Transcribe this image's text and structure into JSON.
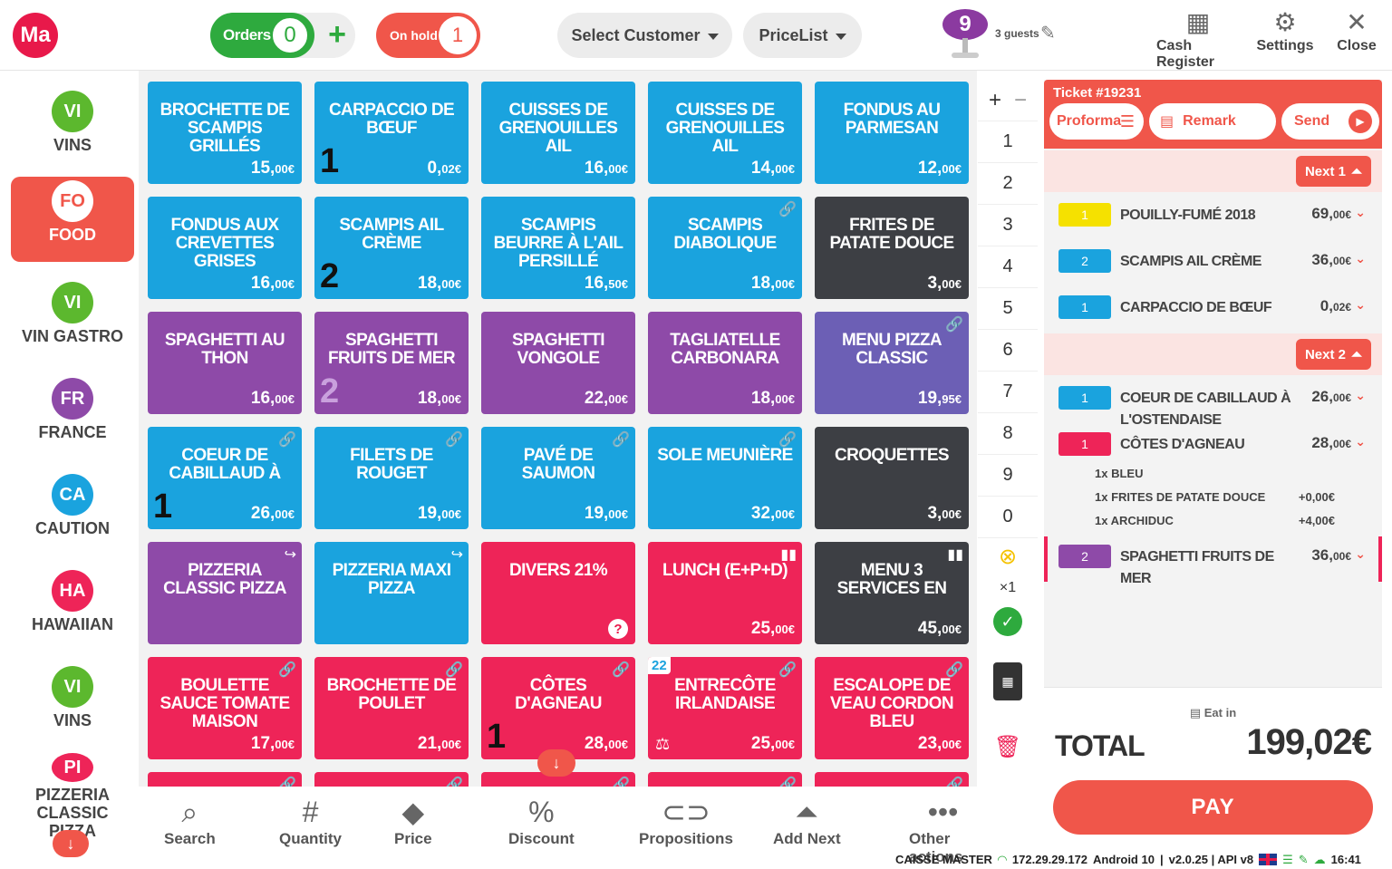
{
  "header": {
    "logo": "Ma",
    "orders_label": "Orders",
    "orders_count": "0",
    "orders_add": "+",
    "onhold_label": "On hold",
    "onhold_count": "1",
    "select_customer": "Select Customer",
    "pricelist": "PriceList",
    "guests_number": "9",
    "guests_text": "3 guests",
    "cash_register": "Cash Register",
    "settings": "Settings",
    "close": "Close"
  },
  "sidebar": {
    "items": [
      {
        "code": "VI",
        "label": "VINS",
        "color": "#5cb82e"
      },
      {
        "code": "FO",
        "label": "FOOD",
        "color": "#f0564a"
      },
      {
        "code": "VI",
        "label": "VIN GASTRO",
        "color": "#5cb82e"
      },
      {
        "code": "FR",
        "label": "FRANCE",
        "color": "#8e4aa8"
      },
      {
        "code": "CA",
        "label": "CAUTION",
        "color": "#1aa3de"
      },
      {
        "code": "HA",
        "label": "HAWAIIAN",
        "color": "#ee2458"
      },
      {
        "code": "VI",
        "label": "VINS",
        "color": "#5cb82e"
      },
      {
        "code": "PI",
        "label": "PIZZERIA CLASSIC PIZZA",
        "color": "#ee2458"
      }
    ]
  },
  "products": [
    {
      "name": "BROCHETTE DE SCAMPIS GRILLÉS",
      "price": "15,",
      "cur": "00€"
    },
    {
      "name": "CARPACCIO DE BŒUF",
      "price": "0,",
      "cur": "02€",
      "qty": "1"
    },
    {
      "name": "CUISSES DE GRENOUILLES AIL",
      "price": "16,",
      "cur": "00€"
    },
    {
      "name": "CUISSES DE GRENOUILLES AIL",
      "price": "14,",
      "cur": "00€"
    },
    {
      "name": "FONDUS AU PARMESAN",
      "price": "12,",
      "cur": "00€"
    },
    {
      "name": "FONDUS AUX CREVETTES GRISES",
      "price": "16,",
      "cur": "00€"
    },
    {
      "name": "SCAMPIS AIL CRÈME",
      "price": "18,",
      "cur": "00€",
      "qty": "2"
    },
    {
      "name": "SCAMPIS BEURRE À L'AIL PERSILLÉ",
      "price": "16,",
      "cur": "50€"
    },
    {
      "name": "SCAMPIS DIABOLIQUE",
      "price": "18,",
      "cur": "00€"
    },
    {
      "name": "FRITES DE PATATE DOUCE",
      "price": "3,",
      "cur": "00€"
    },
    {
      "name": "SPAGHETTI AU THON",
      "price": "16,",
      "cur": "00€"
    },
    {
      "name": "SPAGHETTI FRUITS DE MER",
      "price": "18,",
      "cur": "00€",
      "qty": "2"
    },
    {
      "name": "SPAGHETTI VONGOLE",
      "price": "22,",
      "cur": "00€"
    },
    {
      "name": "TAGLIATELLE CARBONARA",
      "price": "18,",
      "cur": "00€"
    },
    {
      "name": "MENU PIZZA CLASSIC",
      "price": "19,",
      "cur": "95€"
    },
    {
      "name": "COEUR DE CABILLAUD À",
      "price": "26,",
      "cur": "00€",
      "qty": "1"
    },
    {
      "name": "FILETS DE ROUGET",
      "price": "19,",
      "cur": "00€"
    },
    {
      "name": "PAVÉ DE SAUMON",
      "price": "19,",
      "cur": "00€"
    },
    {
      "name": "SOLE MEUNIÈRE",
      "price": "32,",
      "cur": "00€"
    },
    {
      "name": "CROQUETTES",
      "price": "3,",
      "cur": "00€"
    },
    {
      "name": "PIZZERIA CLASSIC PIZZA",
      "price": "",
      "cur": ""
    },
    {
      "name": "PIZZERIA MAXI PIZZA",
      "price": "",
      "cur": ""
    },
    {
      "name": "DIVERS 21%",
      "price": "",
      "cur": "",
      "qmark": "?"
    },
    {
      "name": "LUNCH (E+P+D)",
      "price": "25,",
      "cur": "00€"
    },
    {
      "name": "Menu 3 services EN",
      "price": "45,",
      "cur": "00€"
    },
    {
      "name": "BOULETTE SAUCE TOMATE MAISON",
      "price": "17,",
      "cur": "00€"
    },
    {
      "name": "BROCHETTE DE POULET",
      "price": "21,",
      "cur": "00€"
    },
    {
      "name": "CÔTES D'AGNEAU",
      "price": "28,",
      "cur": "00€",
      "qty": "1"
    },
    {
      "name": "ENTRECÔTE IRLANDAISE",
      "price": "25,",
      "cur": "00€",
      "badge": "22"
    },
    {
      "name": "ESCALOPE DE VEAU CORDON BLEU",
      "price": "23,",
      "cur": "00€"
    }
  ],
  "numpad": {
    "plus": "+",
    "minus": "−",
    "keys": [
      "1",
      "2",
      "3",
      "4",
      "5",
      "6",
      "7",
      "8",
      "9",
      "0"
    ],
    "multiplier": "×1"
  },
  "ticket": {
    "title": "Ticket #19231",
    "proforma": "Proforma",
    "remark": "Remark",
    "send": "Send",
    "next1": "Next 1",
    "next2": "Next 2",
    "lines1": [
      {
        "qty": "1",
        "name": "POUILLY-FUMÉ 2018",
        "price": "69,",
        "cur": "00€",
        "color": "#f5e100"
      },
      {
        "qty": "2",
        "name": "SCAMPIS AIL CRÈME",
        "price": "36,",
        "cur": "00€",
        "color": "#1aa3de"
      },
      {
        "qty": "1",
        "name": "CARPACCIO DE BŒUF",
        "price": "0,",
        "cur": "02€",
        "color": "#1aa3de"
      }
    ],
    "lines2": [
      {
        "qty": "1",
        "name": "COEUR DE CABILLAUD À L'OSTENDAISE",
        "price": "26,",
        "cur": "00€",
        "color": "#1aa3de"
      },
      {
        "qty": "1",
        "name": "CÔTES D'AGNEAU",
        "price": "28,",
        "cur": "00€",
        "color": "#ee2458"
      }
    ],
    "subs": [
      {
        "name": "1x BLEU",
        "price": ""
      },
      {
        "name": "1x FRITES DE PATATE DOUCE",
        "price": "+0,00€"
      },
      {
        "name": "1x ARCHIDUC",
        "price": "+4,00€"
      }
    ],
    "line3": {
      "qty": "2",
      "name": "SPAGHETTI FRUITS DE MER",
      "price": "36,",
      "cur": "00€",
      "color": "#8e4aa8"
    },
    "eat_in": "Eat in",
    "total_label": "TOTAL",
    "total_value": "199,02€",
    "pay": "PAY"
  },
  "bottom": [
    {
      "icon": "search-icon",
      "label": "Search"
    },
    {
      "icon": "hash-icon",
      "label": "Quantity"
    },
    {
      "icon": "tag-icon",
      "label": "Price"
    },
    {
      "icon": "percent-icon",
      "label": "Discount"
    },
    {
      "icon": "link-icon",
      "label": "Propositions"
    },
    {
      "icon": "bell-icon",
      "label": "Add Next"
    },
    {
      "icon": "more-icon",
      "label": "Other actions"
    }
  ],
  "status": {
    "device": "CAISSE MASTER",
    "ip": "172.29.29.172",
    "os": "Android 10",
    "version": "v2.0.25 | API v8",
    "time": "16:41"
  },
  "colors": {
    "accent": "#f0564a",
    "green": "#2eaa3e",
    "blue": "#1aa3de",
    "purple": "#8e4aa8",
    "pink": "#ee2458",
    "dark": "#3d3f44"
  }
}
